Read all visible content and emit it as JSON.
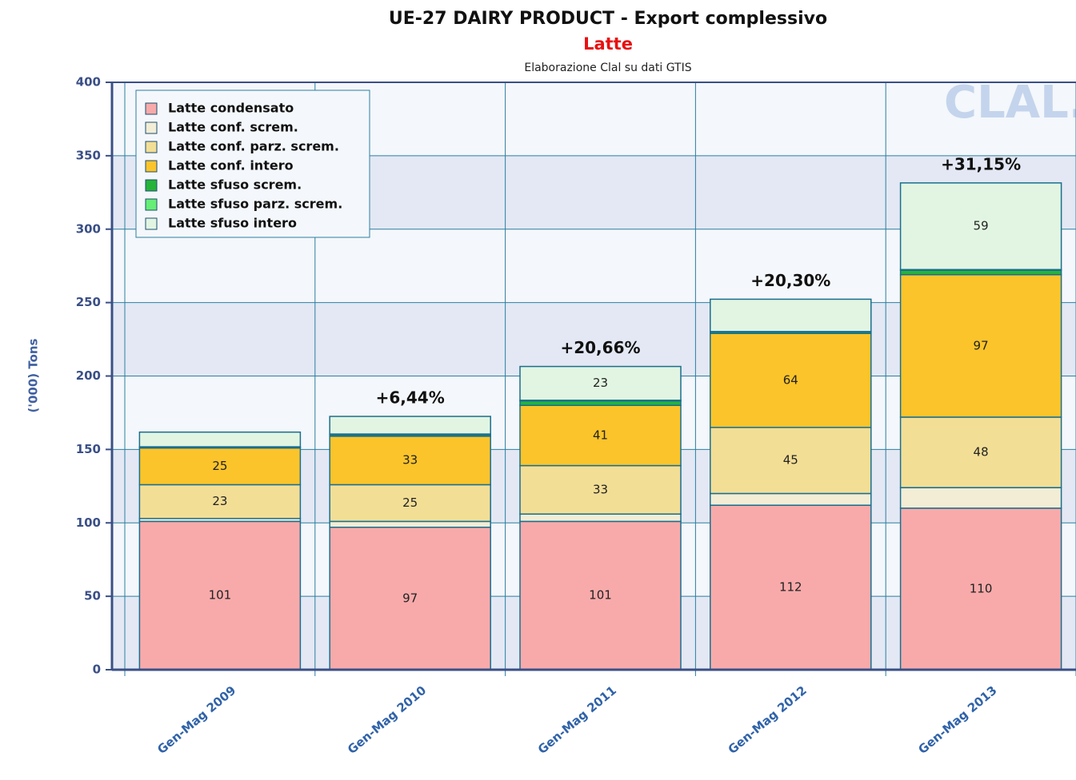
{
  "chart_data": {
    "type": "stacked_bar",
    "title": "UE-27 DAIRY PRODUCT - Export complessivo",
    "subtitle": "Latte",
    "source": "Elaborazione Clal su dati GTIS",
    "watermark": "CLAL.it",
    "y_label": "('000) Tons",
    "categories": [
      "Gen-Mag 2009",
      "Gen-Mag 2010",
      "Gen-Mag 2011",
      "Gen-Mag 2012",
      "Gen-Mag 2013"
    ],
    "series": [
      {
        "name": "Latte condensato",
        "color": "#f8aaaa",
        "values": [
          101,
          97,
          101,
          112,
          110
        ],
        "value_labels": [
          "101",
          "97",
          "101",
          "112",
          "110"
        ]
      },
      {
        "name": "Latte conf. screm.",
        "color": "#f3edd5",
        "values": [
          2,
          4,
          5,
          8,
          14
        ],
        "value_labels": [
          null,
          null,
          null,
          null,
          null
        ]
      },
      {
        "name": "Latte conf. parz. screm.",
        "color": "#f3de96",
        "values": [
          23,
          25,
          33,
          45,
          48
        ],
        "value_labels": [
          "23",
          "25",
          "33",
          "45",
          "48"
        ]
      },
      {
        "name": "Latte conf. intero",
        "color": "#fbc42a",
        "values": [
          25,
          33,
          41,
          64,
          97
        ],
        "value_labels": [
          "25",
          "33",
          "41",
          "64",
          "97"
        ]
      },
      {
        "name": "Latte sfuso screm.",
        "color": "#26b33a",
        "values": [
          0.5,
          1,
          3,
          1,
          3
        ],
        "value_labels": [
          null,
          null,
          null,
          null,
          null
        ]
      },
      {
        "name": "Latte sfuso parz. screm.",
        "color": "#66ee77",
        "values": [
          0.3,
          0.5,
          0.5,
          0.3,
          0.5
        ],
        "value_labels": [
          null,
          null,
          null,
          null,
          null
        ]
      },
      {
        "name": "Latte sfuso intero",
        "color": "#e2f5e2",
        "values": [
          10,
          12,
          23,
          22,
          59
        ],
        "value_labels": [
          null,
          null,
          "23",
          null,
          "59"
        ]
      }
    ],
    "annotations": [
      null,
      "+6,44%",
      "+20,66%",
      "+20,30%",
      "+31,15%"
    ],
    "ylim": [
      0,
      400
    ],
    "yticks": [
      0,
      50,
      100,
      150,
      200,
      250,
      300,
      350,
      400
    ],
    "grid": true,
    "legend": "top-left"
  }
}
